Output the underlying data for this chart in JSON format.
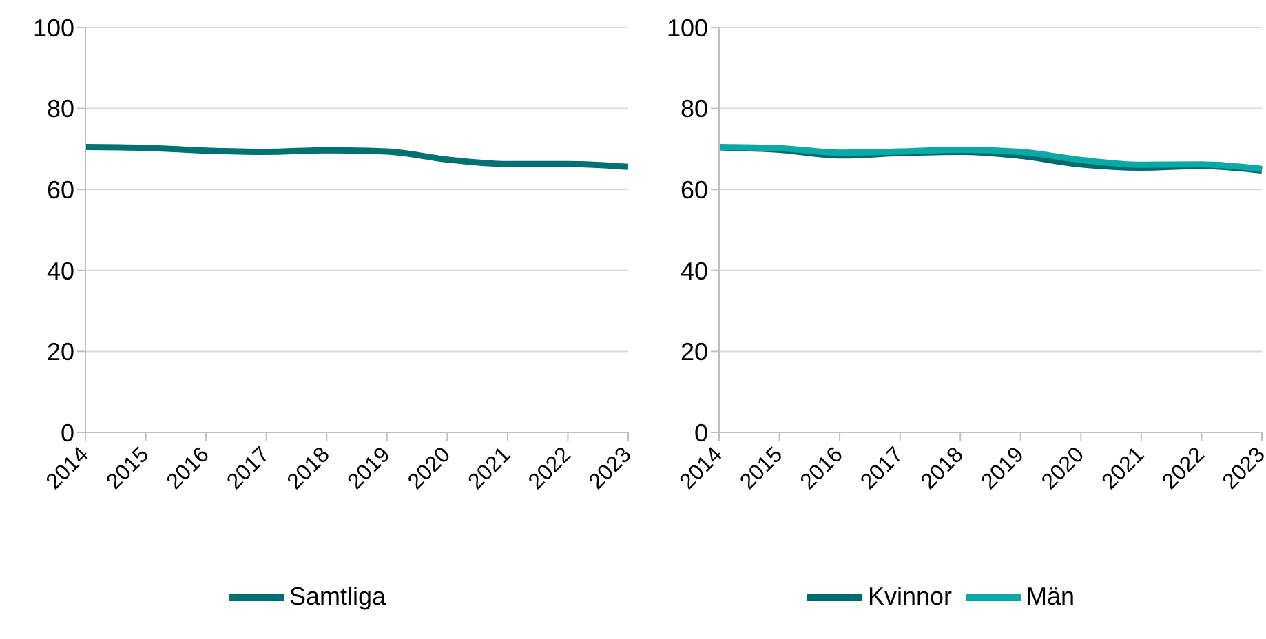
{
  "chart_data": [
    {
      "type": "line",
      "categories": [
        "2014",
        "2015",
        "2016",
        "2017",
        "2018",
        "2019",
        "2020",
        "2021",
        "2022",
        "2023"
      ],
      "series": [
        {
          "name": "Samtliga",
          "color": "#007173",
          "values": [
            70.5,
            70.3,
            69.6,
            69.3,
            69.7,
            69.4,
            67.4,
            66.3,
            66.3,
            65.6
          ]
        }
      ],
      "ylim": [
        0,
        100
      ],
      "yticks": [
        0,
        20,
        40,
        60,
        80,
        100
      ],
      "grid": "y",
      "legend": "bottom",
      "marker": "none",
      "line_style": "solid"
    },
    {
      "type": "line",
      "categories": [
        "2014",
        "2015",
        "2016",
        "2017",
        "2018",
        "2019",
        "2020",
        "2021",
        "2022",
        "2023"
      ],
      "series": [
        {
          "name": "Kvinnor",
          "color": "#006b6d",
          "values": [
            70.4,
            69.8,
            68.4,
            69.0,
            69.3,
            68.3,
            66.2,
            65.4,
            65.8,
            64.7
          ]
        },
        {
          "name": "Män",
          "color": "#0aa9a5",
          "values": [
            70.5,
            70.2,
            69.1,
            69.4,
            69.8,
            69.3,
            67.3,
            66.1,
            66.2,
            65.1
          ]
        }
      ],
      "ylim": [
        0,
        100
      ],
      "yticks": [
        0,
        20,
        40,
        60,
        80,
        100
      ],
      "grid": "y",
      "legend": "bottom",
      "marker": "none",
      "line_style": "solid"
    }
  ]
}
